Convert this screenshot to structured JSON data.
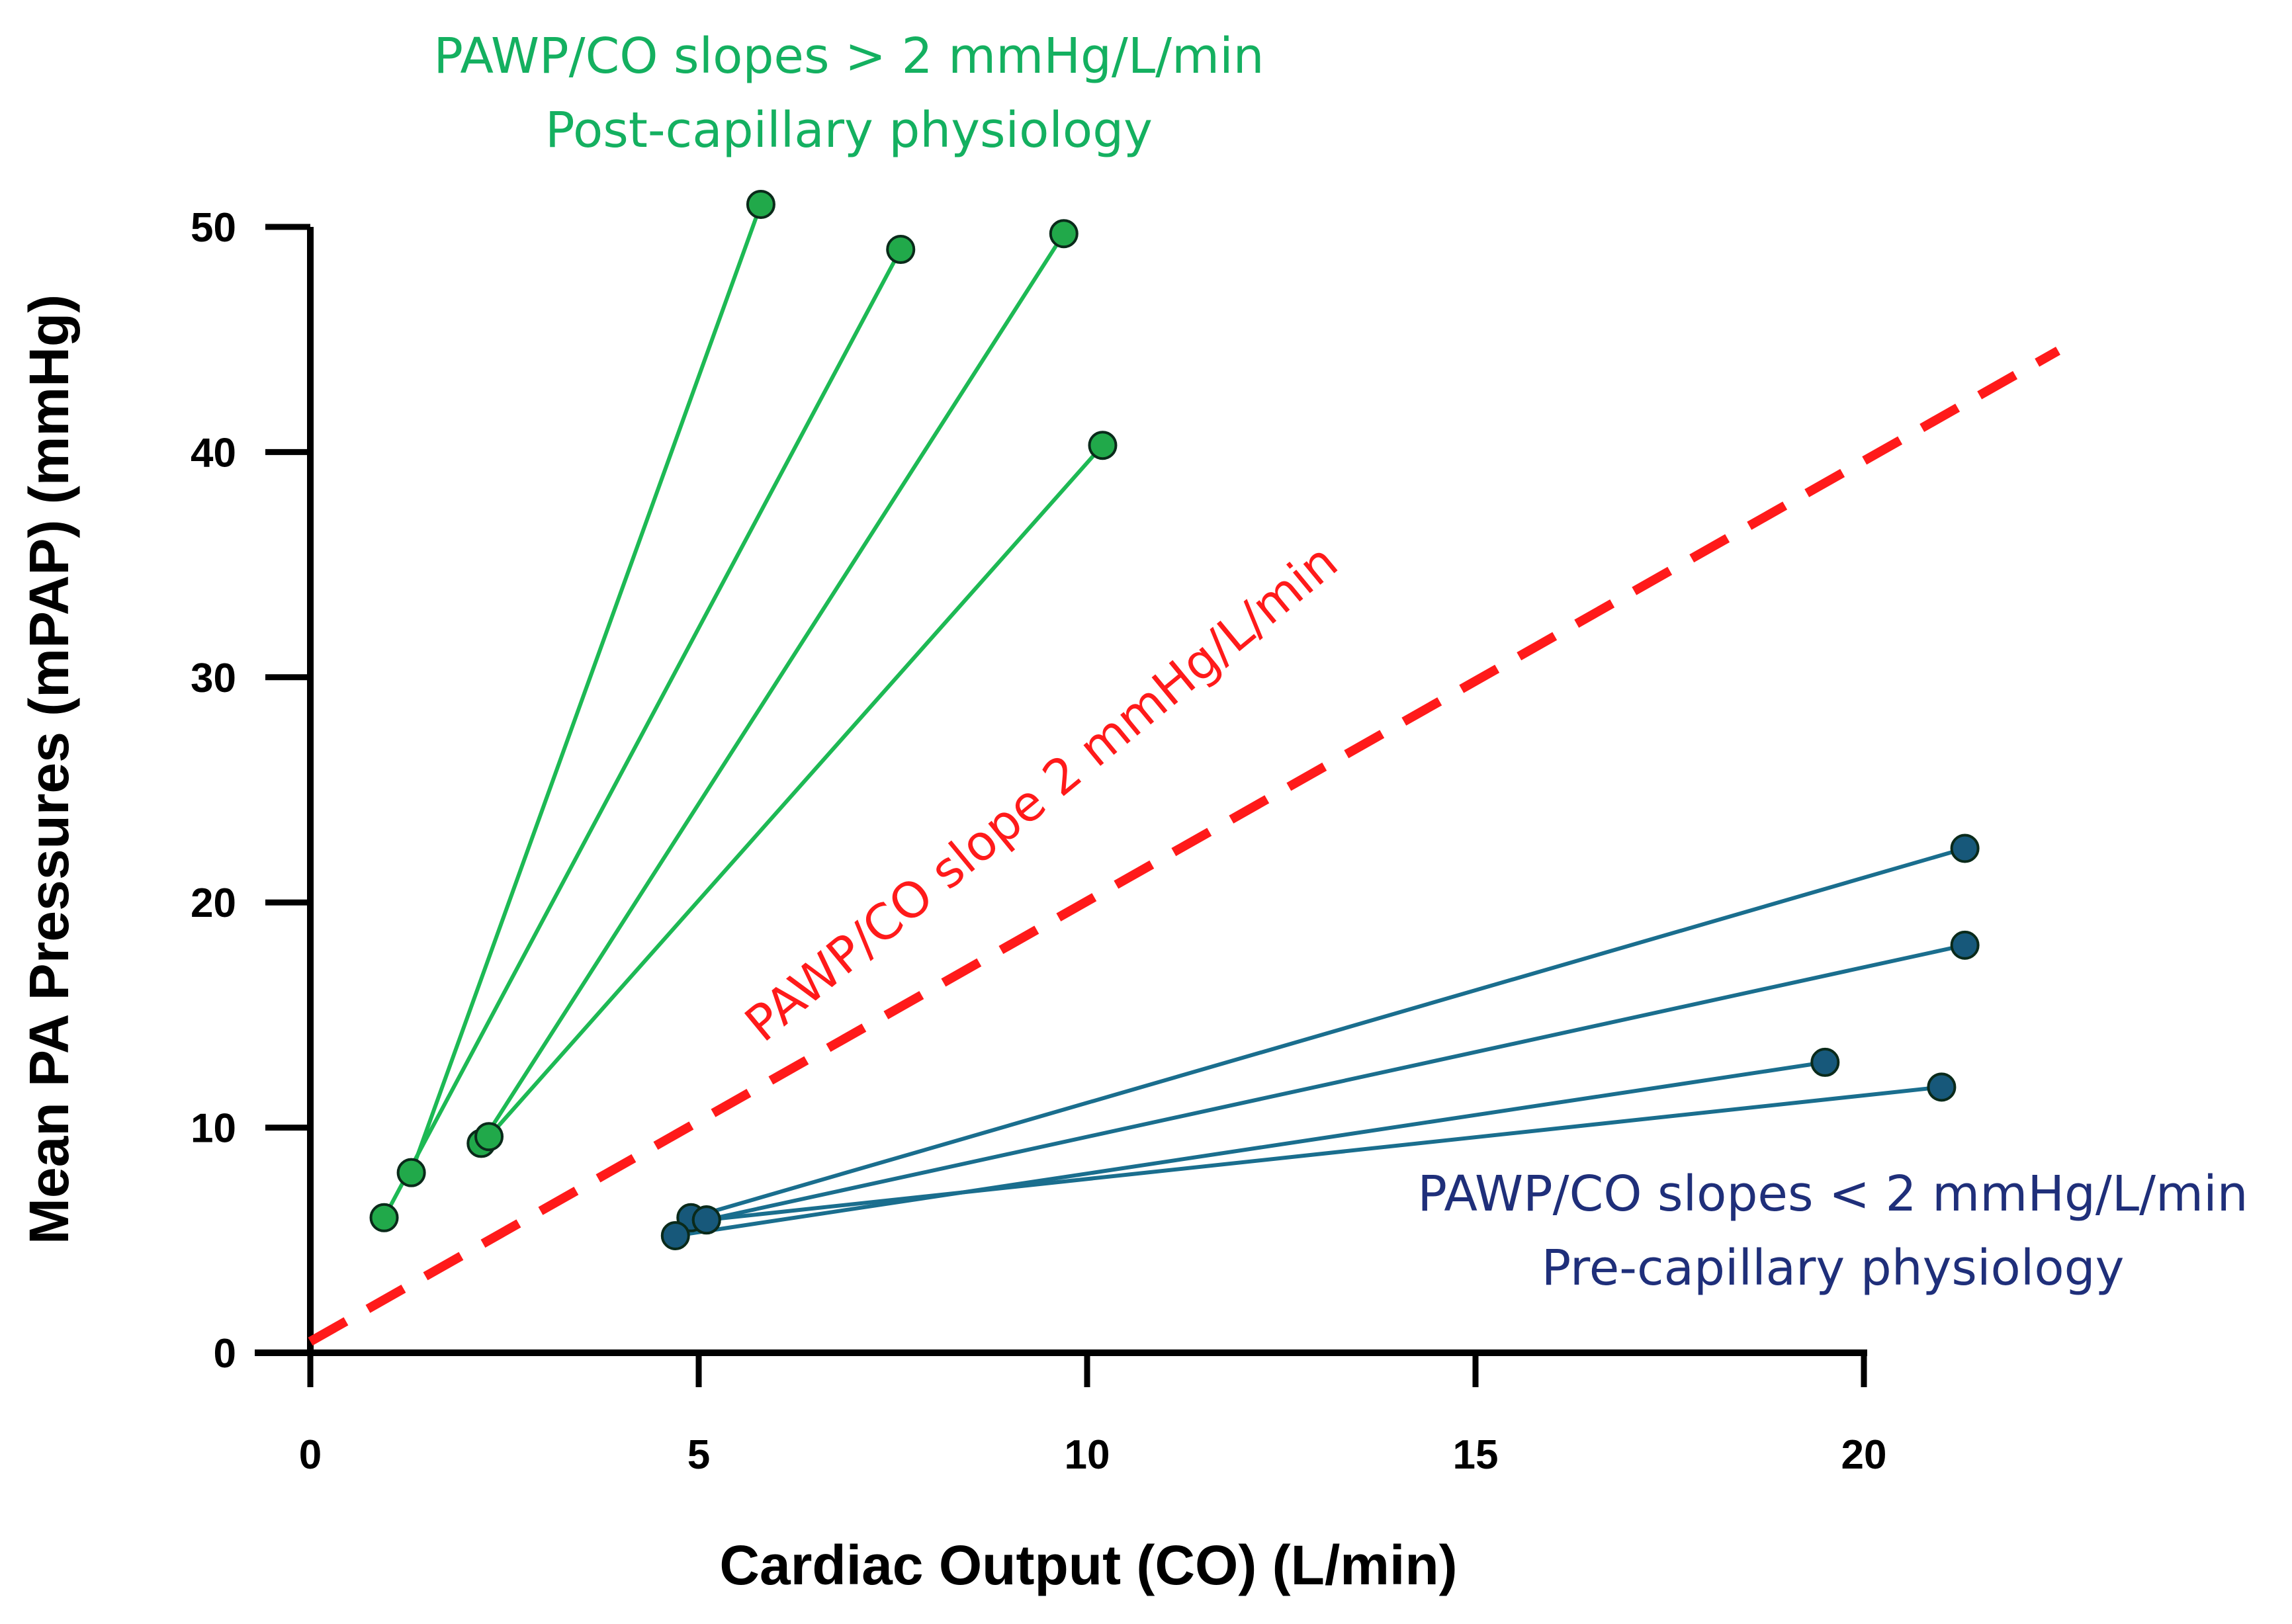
{
  "chart_data": {
    "type": "line",
    "xlabel": "Cardiac Output  (CO) (L/min)",
    "ylabel": "Mean PA Pressures (mPAP) (mmHg)",
    "xlim": [
      0,
      20
    ],
    "ylim": [
      0,
      50
    ],
    "xticks": [
      "0",
      "5",
      "10",
      "15",
      "20"
    ],
    "yticks": [
      "0",
      "10",
      "20",
      "30",
      "40",
      "50"
    ],
    "grid": false,
    "colors": {
      "post_capillary": "#1DB954",
      "pre_capillary": "#1A6E8E",
      "reference": "#FF1A1A",
      "post_text": "#14B060",
      "pre_text": "#1F2F7A"
    },
    "reference_line": {
      "style": "dashed",
      "x": [
        0,
        22.5
      ],
      "y": [
        0.5,
        44.5
      ],
      "label": "PAWP/CO slope 2 mmHg/L/min"
    },
    "series": [
      {
        "group": "post-capillary",
        "x": [
          1.3,
          5.8
        ],
        "y": [
          8.0,
          51.0
        ]
      },
      {
        "group": "post-capillary",
        "x": [
          0.95,
          7.6
        ],
        "y": [
          6.0,
          49.0
        ]
      },
      {
        "group": "post-capillary",
        "x": [
          2.2,
          9.7
        ],
        "y": [
          9.3,
          49.7
        ]
      },
      {
        "group": "post-capillary",
        "x": [
          2.3,
          10.2
        ],
        "y": [
          9.6,
          40.3
        ]
      },
      {
        "group": "pre-capillary",
        "x": [
          4.9,
          21.3
        ],
        "y": [
          6.0,
          22.4
        ]
      },
      {
        "group": "pre-capillary",
        "x": [
          5.1,
          21.3
        ],
        "y": [
          5.9,
          18.1
        ]
      },
      {
        "group": "pre-capillary",
        "x": [
          4.7,
          19.5
        ],
        "y": [
          5.2,
          12.9
        ]
      },
      {
        "group": "pre-capillary",
        "x": [
          5.1,
          21.0
        ],
        "y": [
          5.9,
          11.8
        ]
      }
    ],
    "annotations": {
      "post_line1": "PAWP/CO slopes > 2 mmHg/L/min",
      "post_line2": "Post-capillary physiology",
      "pre_line1": "PAWP/CO slopes < 2 mmHg/L/min",
      "pre_line2": "Pre-capillary physiology"
    }
  }
}
